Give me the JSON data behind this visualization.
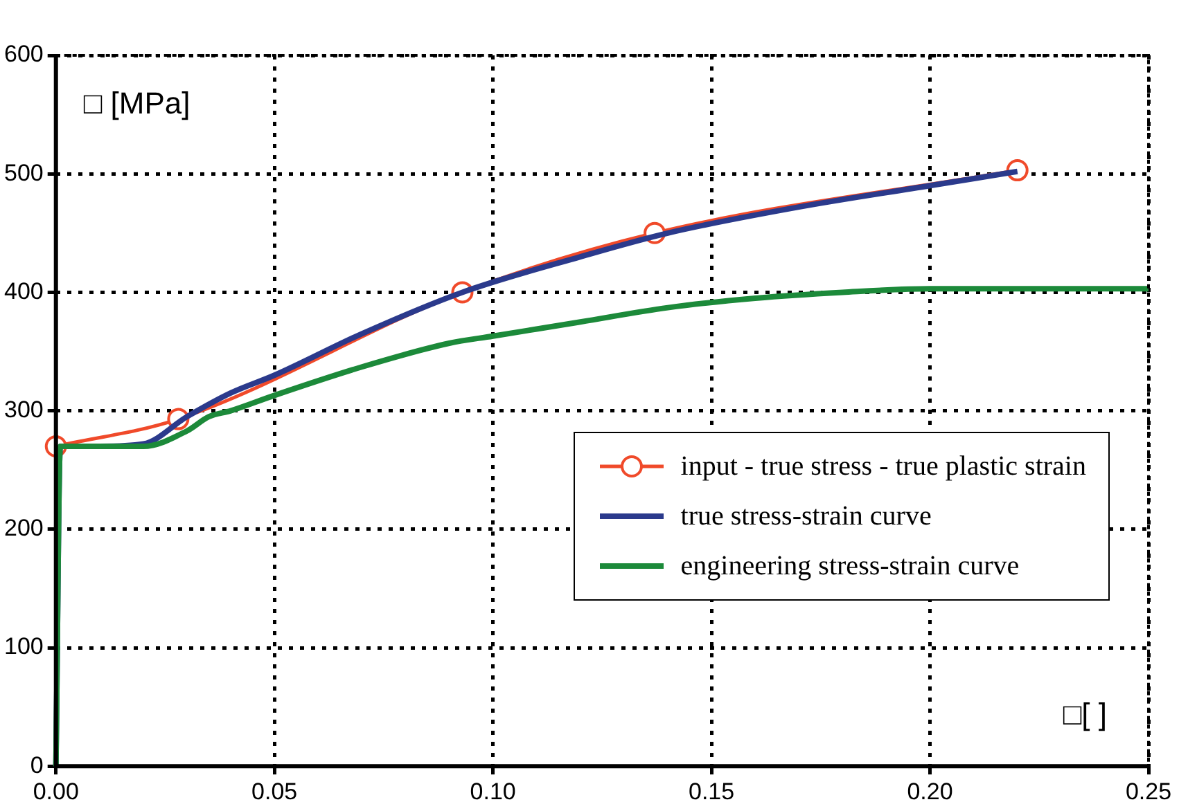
{
  "chart_data": {
    "type": "line",
    "xlabel": "□[ ]",
    "ylabel": "□ [MPa]",
    "xlim": [
      0,
      0.25
    ],
    "xticks": [
      {
        "value": 0,
        "label": "0.00"
      },
      {
        "value": 0.05,
        "label": "0.05"
      },
      {
        "value": 0.1,
        "label": "0.10"
      },
      {
        "value": 0.15,
        "label": "0.15"
      },
      {
        "value": 0.2,
        "label": "0.20"
      },
      {
        "value": 0.25,
        "label": "0.25"
      }
    ],
    "ylim": [
      0,
      600
    ],
    "yticks": [
      0,
      100,
      200,
      300,
      400,
      500,
      600
    ],
    "grid": true,
    "legend": "right",
    "line_style": "solid",
    "series": [
      {
        "name": "input - true stress - true plastic strain",
        "color": "#f04a2a",
        "marker": "circle",
        "x": [
          0,
          0.028,
          0.093,
          0.137,
          0.22
        ],
        "values": [
          270,
          293,
          400,
          450,
          503
        ]
      },
      {
        "name": "true stress-strain curve",
        "color": "#2b3a8c",
        "marker": "none",
        "x": [
          0,
          0.001,
          0.01,
          0.02,
          0.03,
          0.04,
          0.05,
          0.07,
          0.093,
          0.12,
          0.14,
          0.17,
          0.2,
          0.22
        ],
        "values": [
          0,
          270,
          270,
          272,
          295,
          315,
          330,
          365,
          400,
          430,
          450,
          472,
          490,
          502
        ]
      },
      {
        "name": "engineering stress-strain curve",
        "color": "#1c8a3a",
        "marker": "none",
        "x": [
          0,
          0.001,
          0.01,
          0.02,
          0.03,
          0.035,
          0.04,
          0.05,
          0.07,
          0.09,
          0.1,
          0.12,
          0.14,
          0.16,
          0.18,
          0.2,
          0.25
        ],
        "values": [
          0,
          270,
          270,
          270,
          283,
          295,
          300,
          313,
          337,
          357,
          363,
          375,
          387,
          395,
          400,
          403,
          403
        ]
      }
    ]
  }
}
